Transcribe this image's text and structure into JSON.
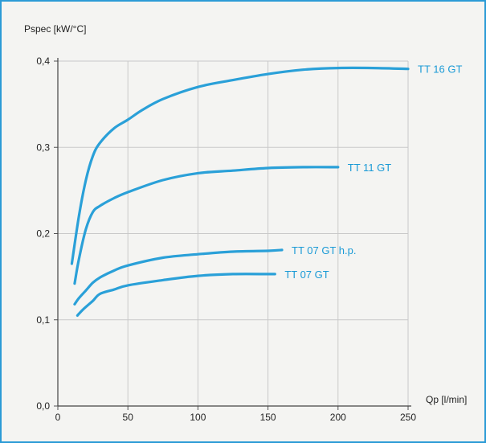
{
  "chart_data": {
    "type": "line",
    "title": "",
    "ylabel": "Pspec [kW/°C]",
    "xlabel": "Qp [l/min]",
    "xlim": [
      0,
      250
    ],
    "ylim": [
      0,
      0.4
    ],
    "x_ticks": [
      0,
      50,
      100,
      150,
      200,
      250
    ],
    "y_ticks": [
      0.0,
      0.1,
      0.2,
      0.3,
      0.4
    ],
    "x_tick_labels": [
      "0",
      "50",
      "100",
      "150",
      "200",
      "250"
    ],
    "y_tick_labels": [
      "0,0",
      "0,1",
      "0,2",
      "0,3",
      "0,4"
    ],
    "grid": true,
    "series": [
      {
        "name": "TT 16 GT",
        "x": [
          10,
          15,
          20,
          25,
          30,
          40,
          50,
          60,
          75,
          100,
          125,
          150,
          175,
          200,
          225,
          250
        ],
        "y": [
          0.165,
          0.22,
          0.262,
          0.29,
          0.305,
          0.322,
          0.332,
          0.343,
          0.356,
          0.37,
          0.378,
          0.385,
          0.39,
          0.392,
          0.392,
          0.391
        ]
      },
      {
        "name": "TT 11 GT",
        "x": [
          12,
          15,
          20,
          25,
          30,
          40,
          50,
          75,
          100,
          125,
          150,
          175,
          200
        ],
        "y": [
          0.142,
          0.17,
          0.205,
          0.225,
          0.232,
          0.241,
          0.248,
          0.262,
          0.27,
          0.273,
          0.276,
          0.277,
          0.277
        ]
      },
      {
        "name": "TT 07 GT h.p.",
        "x": [
          12,
          15,
          20,
          25,
          30,
          40,
          50,
          75,
          100,
          125,
          150,
          160
        ],
        "y": [
          0.118,
          0.125,
          0.134,
          0.143,
          0.149,
          0.157,
          0.163,
          0.172,
          0.176,
          0.179,
          0.18,
          0.181
        ]
      },
      {
        "name": "TT 07 GT",
        "x": [
          14,
          18,
          25,
          30,
          40,
          50,
          75,
          100,
          125,
          150,
          155
        ],
        "y": [
          0.105,
          0.112,
          0.122,
          0.13,
          0.135,
          0.14,
          0.146,
          0.151,
          0.153,
          0.153,
          0.153
        ]
      }
    ],
    "colors": {
      "line": "#2aa0d8",
      "label": "#1a9ad6",
      "grid": "#c9c9c9",
      "frame": "#2b9bd6",
      "background": "#f4f4f2"
    }
  }
}
